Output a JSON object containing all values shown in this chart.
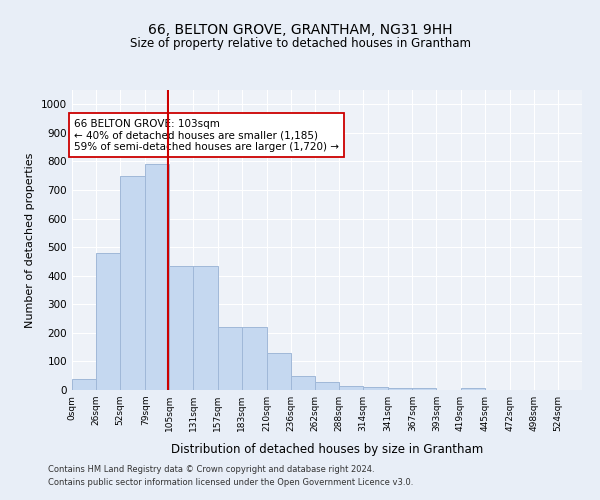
{
  "title": "66, BELTON GROVE, GRANTHAM, NG31 9HH",
  "subtitle": "Size of property relative to detached houses in Grantham",
  "xlabel": "Distribution of detached houses by size in Grantham",
  "ylabel": "Number of detached properties",
  "bar_color": "#c5d8f0",
  "bar_edge_color": "#a0b8d8",
  "bin_labels": [
    "0sqm",
    "26sqm",
    "52sqm",
    "79sqm",
    "105sqm",
    "131sqm",
    "157sqm",
    "183sqm",
    "210sqm",
    "236sqm",
    "262sqm",
    "288sqm",
    "314sqm",
    "341sqm",
    "367sqm",
    "393sqm",
    "419sqm",
    "445sqm",
    "472sqm",
    "498sqm",
    "524sqm"
  ],
  "bin_edges": [
    0,
    26,
    52,
    79,
    105,
    131,
    157,
    183,
    210,
    236,
    262,
    288,
    314,
    341,
    367,
    393,
    419,
    445,
    472,
    498,
    524,
    550
  ],
  "bar_heights": [
    40,
    480,
    750,
    790,
    435,
    435,
    220,
    220,
    130,
    50,
    28,
    14,
    10,
    8,
    7,
    0,
    8,
    0,
    0,
    0,
    0
  ],
  "ylim": [
    0,
    1050
  ],
  "yticks": [
    0,
    100,
    200,
    300,
    400,
    500,
    600,
    700,
    800,
    900,
    1000
  ],
  "property_size": 103,
  "vline_color": "#cc0000",
  "annotation_text": "66 BELTON GROVE: 103sqm\n← 40% of detached houses are smaller (1,185)\n59% of semi-detached houses are larger (1,720) →",
  "annotation_box_color": "#ffffff",
  "annotation_box_edge": "#cc0000",
  "footnote1": "Contains HM Land Registry data © Crown copyright and database right 2024.",
  "footnote2": "Contains public sector information licensed under the Open Government Licence v3.0.",
  "bg_color": "#e8eef7",
  "plot_bg_color": "#eef2f8",
  "grid_color": "#ffffff"
}
